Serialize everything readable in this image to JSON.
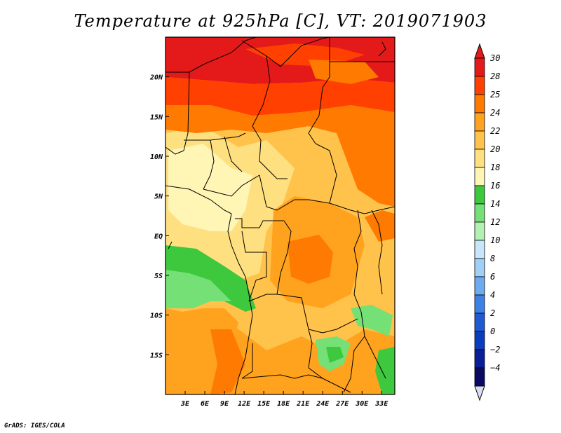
{
  "title": "Temperature at 925hPa [C], VT: 2019071903",
  "footer": "GrADS: IGES/COLA",
  "map": {
    "lon_range": [
      0,
      35
    ],
    "lat_range": [
      -20,
      25
    ],
    "lat_ticks": [
      {
        "value": 20,
        "label": "20N"
      },
      {
        "value": 15,
        "label": "15N"
      },
      {
        "value": 10,
        "label": "10N"
      },
      {
        "value": 5,
        "label": "5N"
      },
      {
        "value": 0,
        "label": "EQ"
      },
      {
        "value": -5,
        "label": "5S"
      },
      {
        "value": -10,
        "label": "10S"
      },
      {
        "value": -15,
        "label": "15S"
      }
    ],
    "lon_ticks": [
      {
        "value": 3,
        "label": "3E"
      },
      {
        "value": 6,
        "label": "6E"
      },
      {
        "value": 9,
        "label": "9E"
      },
      {
        "value": 12,
        "label": "12E"
      },
      {
        "value": 15,
        "label": "15E"
      },
      {
        "value": 18,
        "label": "18E"
      },
      {
        "value": 21,
        "label": "21E"
      },
      {
        "value": 24,
        "label": "24E"
      },
      {
        "value": 27,
        "label": "27E"
      },
      {
        "value": 30,
        "label": "30E"
      },
      {
        "value": 33,
        "label": "33E"
      }
    ]
  },
  "colorbar": {
    "levels": [
      "30",
      "28",
      "25",
      "24",
      "22",
      "20",
      "18",
      "16",
      "14",
      "12",
      "10",
      "8",
      "6",
      "4",
      "2",
      "0",
      "−2",
      "−4"
    ],
    "colors": [
      "#e41a1a",
      "#ff4000",
      "#ff7a00",
      "#ffa21e",
      "#ffc24b",
      "#ffe080",
      "#fff5b4",
      "#3dc83d",
      "#75e075",
      "#b4f0b4",
      "#c8e6fa",
      "#a0d0f5",
      "#6eaaf0",
      "#3c82e6",
      "#1e5ad2",
      "#0a3cbe",
      "#0a1e96",
      "#0a0a64"
    ],
    "top_color": "#e41a1a",
    "bottom_color": "#dcdcf0"
  }
}
